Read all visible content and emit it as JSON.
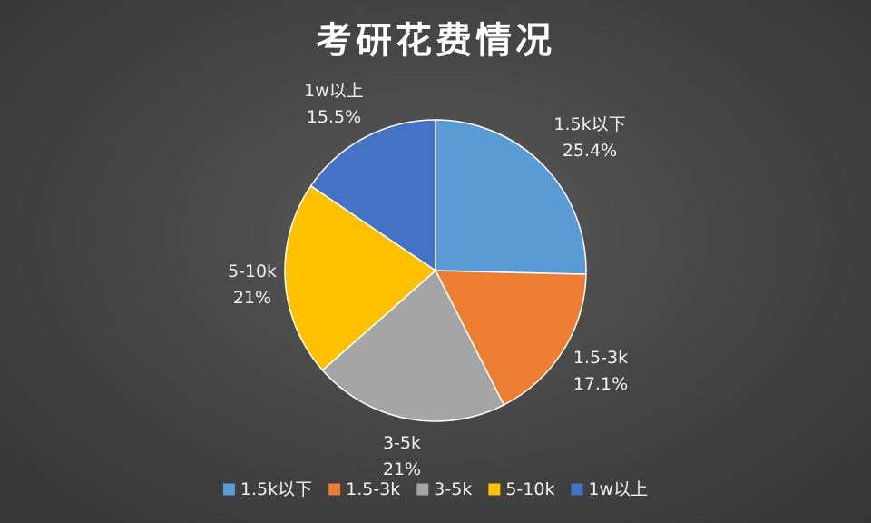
{
  "chart_data": {
    "type": "pie",
    "title": "考研花费情况",
    "legend": "bottom",
    "slices": [
      {
        "name": "1.5k以下",
        "value": 25.4,
        "label": "25.4%",
        "color": "#5b9bd5"
      },
      {
        "name": "1.5-3k",
        "value": 17.1,
        "label": "17.1%",
        "color": "#ed7d31"
      },
      {
        "name": "3-5k",
        "value": 21,
        "label": "21%",
        "color": "#a5a5a5"
      },
      {
        "name": "5-10k",
        "value": 21,
        "label": "21%",
        "color": "#ffc000"
      },
      {
        "name": "1w以上",
        "value": 15.5,
        "label": "15.5%",
        "color": "#4472c4"
      }
    ]
  }
}
